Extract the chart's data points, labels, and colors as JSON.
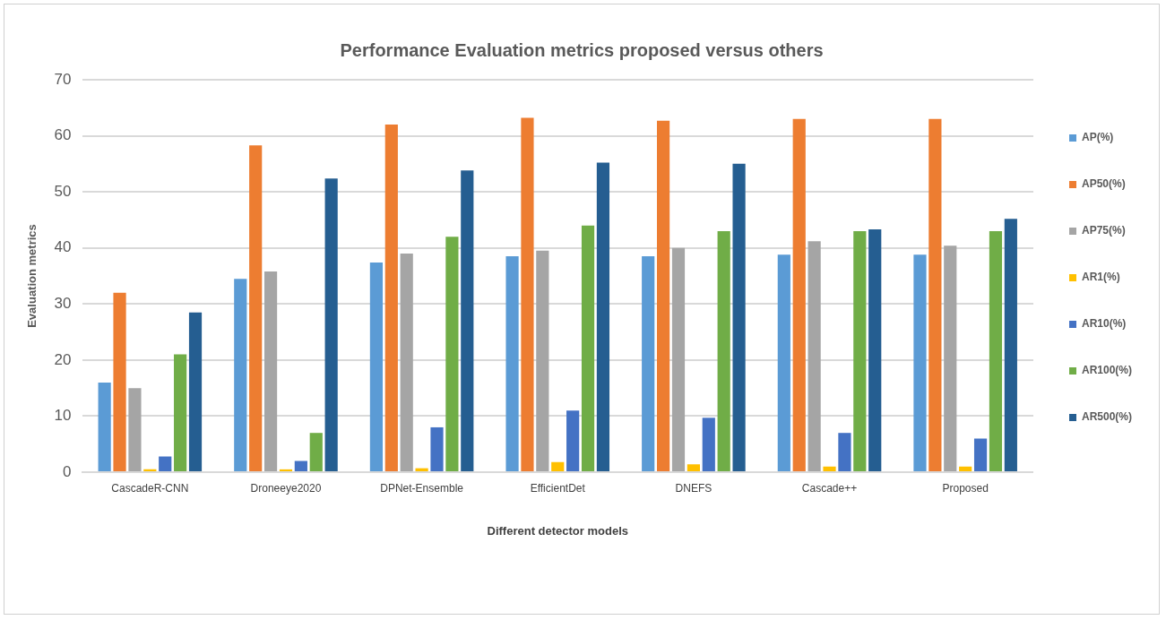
{
  "chart_data": {
    "type": "bar",
    "title": "Performance Evaluation metrics proposed versus others",
    "xlabel": "Different detector models",
    "ylabel": "Evaluation metrics",
    "categories": [
      "CascadeR-CNN",
      "Droneeye2020",
      "DPNet-Ensemble",
      "EfficientDet",
      "DNEFS",
      "Cascade++",
      "Proposed"
    ],
    "series": [
      {
        "name": "AP(%)",
        "color": "#5b9bd5",
        "values": [
          16,
          34.5,
          37.4,
          38.5,
          38.5,
          38.8,
          38.8
        ]
      },
      {
        "name": "AP50(%)",
        "color": "#ed7d31",
        "values": [
          32,
          58.3,
          62,
          63.2,
          62.7,
          63,
          63
        ]
      },
      {
        "name": "AP75(%)",
        "color": "#a5a5a5",
        "values": [
          15,
          35.8,
          39,
          39.5,
          40,
          41.2,
          40.4
        ]
      },
      {
        "name": "AR1(%)",
        "color": "#ffc000",
        "values": [
          0.5,
          0.5,
          0.7,
          1.8,
          1.4,
          1,
          1
        ]
      },
      {
        "name": "AR10(%)",
        "color": "#4472c4",
        "values": [
          2.8,
          2,
          8,
          11,
          9.7,
          7,
          6
        ]
      },
      {
        "name": "AR100(%)",
        "color": "#70ad47",
        "values": [
          21,
          7,
          42,
          44,
          43,
          43,
          43
        ]
      },
      {
        "name": "AR500(%)",
        "color": "#255e91",
        "values": [
          28.5,
          52.4,
          53.8,
          55.2,
          55,
          43.3,
          45.2
        ]
      }
    ],
    "ylim": [
      0,
      70
    ],
    "yticks": [
      0,
      10,
      20,
      30,
      40,
      50,
      60,
      70
    ],
    "grid": "y",
    "legend": "right"
  }
}
